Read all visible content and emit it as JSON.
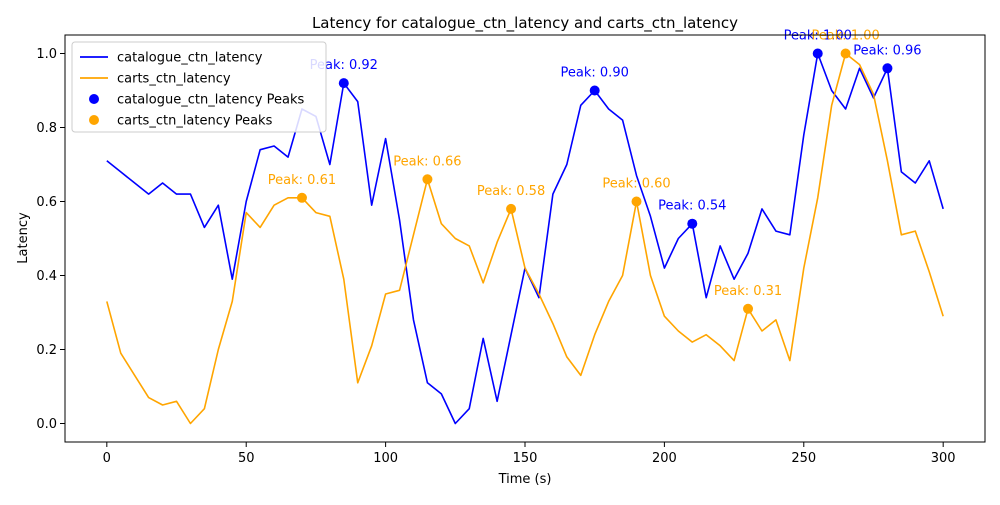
{
  "chart_data": {
    "type": "line",
    "title": "Latency for catalogue_ctn_latency and carts_ctn_latency",
    "xlabel": "Time (s)",
    "ylabel": "Latency",
    "xlim": [
      -15,
      315
    ],
    "ylim": [
      -0.05,
      1.05
    ],
    "xticks": [
      0,
      50,
      100,
      150,
      200,
      250,
      300
    ],
    "yticks": [
      0.0,
      0.2,
      0.4,
      0.6,
      0.8,
      1.0
    ],
    "xtick_labels": [
      "0",
      "50",
      "100",
      "150",
      "200",
      "250",
      "300"
    ],
    "ytick_labels": [
      "0.0",
      "0.2",
      "0.4",
      "0.6",
      "0.8",
      "1.0"
    ],
    "grid": false,
    "legend_position": "top-left",
    "x": [
      0,
      5,
      10,
      15,
      20,
      25,
      30,
      35,
      40,
      45,
      50,
      55,
      60,
      65,
      70,
      75,
      80,
      85,
      90,
      95,
      100,
      105,
      110,
      115,
      120,
      125,
      130,
      135,
      140,
      145,
      150,
      155,
      160,
      165,
      170,
      175,
      180,
      185,
      190,
      195,
      200,
      205,
      210,
      215,
      220,
      225,
      230,
      235,
      240,
      245,
      250,
      255,
      260,
      265,
      270,
      275,
      280,
      285,
      290,
      295,
      300
    ],
    "series": [
      {
        "name": "catalogue_ctn_latency",
        "color": "#0000ff",
        "values": [
          0.71,
          0.68,
          0.65,
          0.62,
          0.65,
          0.62,
          0.62,
          0.53,
          0.59,
          0.39,
          0.6,
          0.74,
          0.75,
          0.72,
          0.85,
          0.83,
          0.7,
          0.92,
          0.87,
          0.59,
          0.77,
          0.55,
          0.28,
          0.11,
          0.08,
          0.0,
          0.04,
          0.23,
          0.06,
          0.24,
          0.42,
          0.34,
          0.62,
          0.7,
          0.86,
          0.9,
          0.85,
          0.82,
          0.67,
          0.56,
          0.42,
          0.5,
          0.54,
          0.34,
          0.48,
          0.39,
          0.46,
          0.58,
          0.52,
          0.51,
          0.78,
          1.0,
          0.9,
          0.85,
          0.96,
          0.88,
          0.96,
          0.68,
          0.65,
          0.71,
          0.58
        ]
      },
      {
        "name": "carts_ctn_latency",
        "color": "#ffa500",
        "values": [
          0.33,
          0.19,
          0.13,
          0.07,
          0.05,
          0.06,
          0.0,
          0.04,
          0.2,
          0.33,
          0.57,
          0.53,
          0.59,
          0.61,
          0.61,
          0.57,
          0.56,
          0.39,
          0.11,
          0.21,
          0.35,
          0.36,
          0.51,
          0.66,
          0.54,
          0.5,
          0.48,
          0.38,
          0.49,
          0.58,
          0.42,
          0.35,
          0.27,
          0.18,
          0.13,
          0.24,
          0.33,
          0.4,
          0.6,
          0.4,
          0.29,
          0.25,
          0.22,
          0.24,
          0.21,
          0.17,
          0.31,
          0.25,
          0.28,
          0.17,
          0.42,
          0.61,
          0.86,
          1.0,
          0.97,
          0.89,
          0.71,
          0.51,
          0.52,
          0.41,
          0.29
        ]
      }
    ],
    "peaks": [
      {
        "series": "catalogue_ctn_latency Peaks",
        "color": "#0000ff",
        "points": [
          {
            "x": 85,
            "y": 0.92,
            "label": "Peak: 0.92"
          },
          {
            "x": 175,
            "y": 0.9,
            "label": "Peak: 0.90"
          },
          {
            "x": 210,
            "y": 0.54,
            "label": "Peak: 0.54"
          },
          {
            "x": 255,
            "y": 1.0,
            "label": "Peak: 1.00"
          },
          {
            "x": 280,
            "y": 0.96,
            "label": "Peak: 0.96"
          }
        ]
      },
      {
        "series": "carts_ctn_latency Peaks",
        "color": "#ffa500",
        "points": [
          {
            "x": 70,
            "y": 0.61,
            "label": "Peak: 0.61"
          },
          {
            "x": 115,
            "y": 0.66,
            "label": "Peak: 0.66"
          },
          {
            "x": 145,
            "y": 0.58,
            "label": "Peak: 0.58"
          },
          {
            "x": 190,
            "y": 0.6,
            "label": "Peak: 0.60"
          },
          {
            "x": 230,
            "y": 0.31,
            "label": "Peak: 0.31"
          },
          {
            "x": 265,
            "y": 1.0,
            "label": "Peak: 1.00"
          }
        ]
      }
    ],
    "legend": [
      {
        "label": "catalogue_ctn_latency",
        "kind": "line",
        "color": "#0000ff"
      },
      {
        "label": "carts_ctn_latency",
        "kind": "line",
        "color": "#ffa500"
      },
      {
        "label": "catalogue_ctn_latency Peaks",
        "kind": "marker",
        "color": "#0000ff"
      },
      {
        "label": "carts_ctn_latency Peaks",
        "kind": "marker",
        "color": "#ffa500"
      }
    ]
  }
}
